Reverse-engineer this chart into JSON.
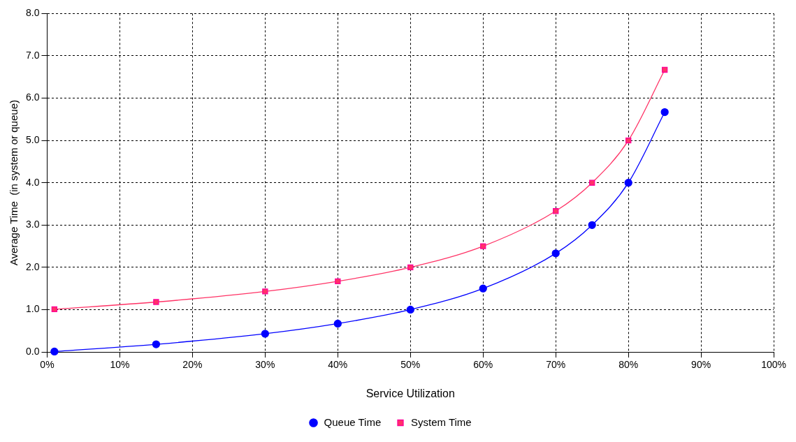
{
  "chart_data": {
    "type": "line",
    "xlabel": "Service Utilization",
    "ylabel": "Average Time  (in system or queue)",
    "x": [
      1,
      15,
      30,
      40,
      50,
      60,
      70,
      75,
      80,
      85
    ],
    "series": [
      {
        "name": "Queue Time",
        "color": "#0000ff",
        "marker": "circle",
        "values": [
          0.01,
          0.18,
          0.43,
          0.67,
          1.0,
          1.5,
          2.33,
          3.0,
          4.0,
          5.67
        ]
      },
      {
        "name": "System Time",
        "color": "#ff3366",
        "marker": "square",
        "values": [
          1.01,
          1.18,
          1.43,
          1.67,
          2.0,
          2.5,
          3.33,
          4.0,
          5.0,
          6.67
        ]
      }
    ],
    "xlim": [
      0,
      100
    ],
    "xticks": [
      {
        "value": 0,
        "label": "0%"
      },
      {
        "value": 10,
        "label": "10%"
      },
      {
        "value": 20,
        "label": "20%"
      },
      {
        "value": 30,
        "label": "30%"
      },
      {
        "value": 40,
        "label": "40%"
      },
      {
        "value": 50,
        "label": "50%"
      },
      {
        "value": 60,
        "label": "60%"
      },
      {
        "value": 70,
        "label": "70%"
      },
      {
        "value": 80,
        "label": "80%"
      },
      {
        "value": 90,
        "label": "90%"
      },
      {
        "value": 100,
        "label": "100%"
      }
    ],
    "ylim": [
      0,
      8
    ],
    "yticks": [
      {
        "value": 0,
        "label": "0.0"
      },
      {
        "value": 1,
        "label": "1.0"
      },
      {
        "value": 2,
        "label": "2.0"
      },
      {
        "value": 3,
        "label": "3.0"
      },
      {
        "value": 4,
        "label": "4.0"
      },
      {
        "value": 5,
        "label": "5.0"
      },
      {
        "value": 6,
        "label": "6.0"
      },
      {
        "value": 7,
        "label": "7.0"
      },
      {
        "value": 8,
        "label": "8.0"
      }
    ],
    "grid": true,
    "legend": "bottom",
    "line_style": "solid"
  }
}
